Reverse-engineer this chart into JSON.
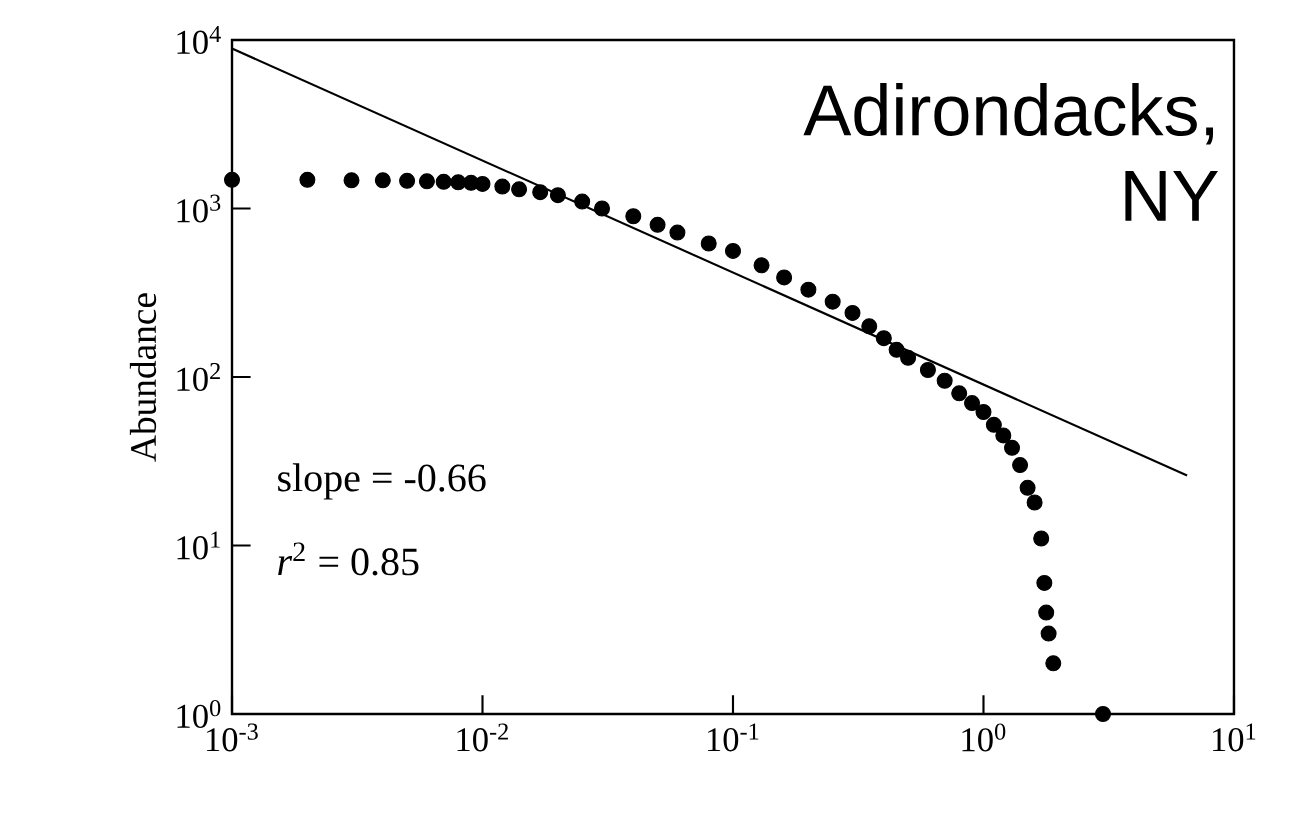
{
  "chart_data": {
    "type": "scatter",
    "ylabel": "Abundance",
    "log": "xy",
    "xlim": [
      0.001,
      10
    ],
    "ylim": [
      1,
      10000
    ],
    "xticks": [
      {
        "value": 0.001,
        "label": "10$^{-3}$"
      },
      {
        "value": 0.01,
        "label": "10$^{-2}$"
      },
      {
        "value": 0.1,
        "label": "10$^{-1}$"
      },
      {
        "value": 1,
        "label": "10$^{0}$"
      },
      {
        "value": 10,
        "label": "10$^{1}$"
      }
    ],
    "yticks": [
      {
        "value": 1,
        "label": "10$^{0}$"
      },
      {
        "value": 10,
        "label": "10$^{1}$"
      },
      {
        "value": 100,
        "label": "10$^{2}$"
      },
      {
        "value": 1000,
        "label": "10$^{3}$"
      },
      {
        "value": 10000,
        "label": "10$^{4}$"
      }
    ],
    "series": [
      {
        "color": "#000000",
        "marker": "circle",
        "x": [
          0.001,
          0.002,
          0.003,
          0.004,
          0.005,
          0.006,
          0.007,
          0.008,
          0.009,
          0.01,
          0.012,
          0.014,
          0.017,
          0.02,
          0.025,
          0.03,
          0.04,
          0.05,
          0.06,
          0.08,
          0.1,
          0.13,
          0.16,
          0.2,
          0.25,
          0.3,
          0.35,
          0.4,
          0.45,
          0.5,
          0.6,
          0.7,
          0.8,
          0.9,
          1.0,
          1.1,
          1.2,
          1.3,
          1.4,
          1.5,
          1.6,
          1.7,
          1.75,
          1.78,
          1.82,
          1.9,
          3.0
        ],
        "values": [
          1480,
          1480,
          1470,
          1470,
          1460,
          1450,
          1440,
          1430,
          1420,
          1400,
          1350,
          1300,
          1250,
          1200,
          1100,
          1000,
          900,
          800,
          720,
          620,
          560,
          460,
          390,
          330,
          280,
          240,
          200,
          170,
          145,
          130,
          110,
          95,
          80,
          70,
          62,
          52,
          45,
          38,
          30,
          22,
          18,
          11,
          6,
          4,
          3,
          2,
          1
        ]
      },
      {
        "type": "line",
        "marker": "none",
        "color": "#000000",
        "x": [
          0.001,
          6.5
        ],
        "values": [
          8900,
          26
        ]
      }
    ],
    "annotations": [
      "Adirondacks, NY",
      "slope = -0.66",
      "*r*$^{2}$ = 0.85"
    ]
  }
}
